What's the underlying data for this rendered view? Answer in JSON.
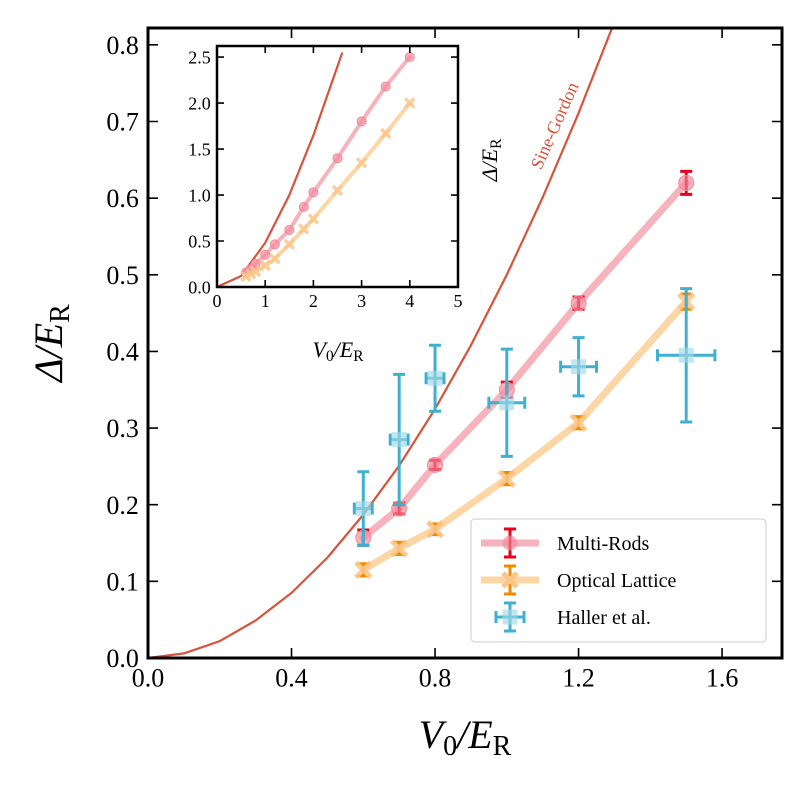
{
  "chart_data": [
    {
      "type": "errorbar",
      "xlabel": [
        "V",
        "0",
        "/E",
        "R"
      ],
      "ylabel": [
        "Δ/E",
        "R"
      ],
      "annotation": "Sine-Gordon",
      "xlim": [
        0,
        1.767
      ],
      "ylim": [
        0,
        0.822
      ],
      "xticks": [
        {
          "value": 0,
          "label": "0.0"
        },
        0.4,
        0.8,
        1.2,
        1.6
      ],
      "yticks": [
        {
          "value": 0,
          "label": "0.0"
        },
        0.1,
        0.2,
        0.3,
        0.4,
        0.5,
        0.6,
        0.7,
        0.8
      ],
      "legend": "lower right",
      "series": [
        {
          "color": "#d9523a",
          "x": [
            0,
            0.1,
            0.2,
            0.3,
            0.4,
            0.5,
            0.6,
            0.7,
            0.8,
            0.9,
            1.0,
            1.1,
            1.2,
            1.3
          ],
          "values": [
            0,
            0.006,
            0.022,
            0.049,
            0.085,
            0.131,
            0.187,
            0.251,
            0.325,
            0.408,
            0.5,
            0.601,
            0.711,
            0.83
          ]
        },
        {
          "name": "Multi-Rods",
          "marker": "o",
          "color": "#e8001c",
          "line_color": "#f7b3bc",
          "marker_color": "#f5889a",
          "x": [
            0.6,
            0.7,
            0.8,
            1.0,
            1.2,
            1.5
          ],
          "values": [
            0.157,
            0.195,
            0.252,
            0.35,
            0.463,
            0.62
          ],
          "errors": [
            0.01,
            0.007,
            0.006,
            0.01,
            0.008,
            0.015
          ]
        },
        {
          "name": "Optical Lattice",
          "marker": "X",
          "color": "#f08b00",
          "line_color": "#fdd6a6",
          "marker_color": "#fcc58a",
          "x": [
            0.6,
            0.7,
            0.8,
            1.0,
            1.2,
            1.5
          ],
          "values": [
            0.115,
            0.143,
            0.168,
            0.234,
            0.307,
            0.465
          ],
          "errors": [
            0.008,
            0.008,
            0.007,
            0.008,
            0.008,
            0.01
          ]
        },
        {
          "name": "Haller et al.",
          "marker": "s",
          "color": "#3fb0cf",
          "marker_color": "#9fd8e8",
          "x": [
            0.6,
            0.7,
            0.8,
            1.0,
            1.2,
            1.5
          ],
          "values": [
            0.195,
            0.285,
            0.365,
            0.333,
            0.38,
            0.395
          ],
          "errors": [
            0.048,
            0.085,
            0.043,
            0.07,
            0.038,
            0.087
          ],
          "xerr": [
            0.025,
            0.025,
            0.025,
            0.05,
            0.05,
            0.08
          ]
        }
      ]
    },
    {
      "type": "errorbar",
      "xlabel": [
        "V",
        "0",
        "/E",
        "R"
      ],
      "ylabel": [
        "Δ/E",
        "R"
      ],
      "xlim": [
        0,
        5
      ],
      "ylim": [
        0,
        2.62
      ],
      "xticks": [
        0,
        1,
        2,
        3,
        4,
        5
      ],
      "yticks": [
        {
          "value": 0,
          "label": "0.0"
        },
        0.5,
        {
          "value": 1,
          "label": "1.0"
        },
        1.5,
        {
          "value": 2,
          "label": "2.0"
        },
        2.5
      ],
      "series": [
        {
          "color": "#d9523a",
          "x": [
            0,
            0.5,
            1,
            1.5,
            2,
            2.5,
            2.6
          ],
          "values": [
            0,
            0.12,
            0.48,
            1.0,
            1.65,
            2.4,
            2.55
          ]
        },
        {
          "marker": "o",
          "color": "#f5889a",
          "line_color": "#f7b3bc",
          "marker_color": "#f5889a",
          "x": [
            0.6,
            0.7,
            0.8,
            1.0,
            1.2,
            1.5,
            1.8,
            2.0,
            2.5,
            3.0,
            3.5,
            4.0
          ],
          "values": [
            0.157,
            0.195,
            0.252,
            0.35,
            0.463,
            0.62,
            0.87,
            1.03,
            1.4,
            1.8,
            2.18,
            2.5
          ]
        },
        {
          "marker": "X",
          "color": "#fcc58a",
          "line_color": "#fdd6a6",
          "marker_color": "#fcc58a",
          "x": [
            0.6,
            0.7,
            0.8,
            1.0,
            1.2,
            1.5,
            1.8,
            2.0,
            2.5,
            3.0,
            3.5,
            4.0
          ],
          "values": [
            0.115,
            0.143,
            0.168,
            0.234,
            0.307,
            0.465,
            0.63,
            0.74,
            1.05,
            1.35,
            1.67,
            2.0
          ]
        }
      ]
    }
  ]
}
